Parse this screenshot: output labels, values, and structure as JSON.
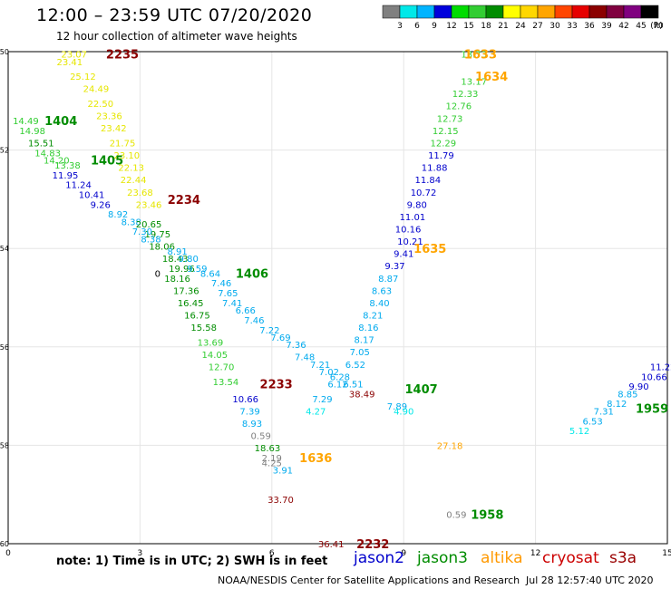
{
  "title": "12:00 – 23:59 UTC 07/20/2020",
  "subtitle": "12 hour collection of altimeter wave heights",
  "colorbar": {
    "ticks": [
      "3",
      "6",
      "9",
      "12",
      "15",
      "18",
      "21",
      "24",
      "27",
      "30",
      "33",
      "36",
      "39",
      "42",
      "45",
      "70",
      "(ft)"
    ],
    "colors": [
      "#808080",
      "#00e8e8",
      "#00b4ff",
      "#0000dc",
      "#00dc00",
      "#32cd32",
      "#008c00",
      "#ffff00",
      "#ffd700",
      "#ffa500",
      "#ff4500",
      "#e60000",
      "#8b0000",
      "#800040",
      "#800080",
      "#000000"
    ]
  },
  "note": "note:  1) Time is in UTC;  2) SWH is in feet",
  "satellites": [
    {
      "name": "jason2",
      "color": "#0000cc"
    },
    {
      "name": "jason3",
      "color": "#008c00"
    },
    {
      "name": "altika",
      "color": "#ff9900"
    },
    {
      "name": "cryosat",
      "color": "#cc0000"
    },
    {
      "name": "s3a",
      "color": "#990000"
    }
  ],
  "credit": "NOAA/NESDIS Center for Satellite Applications and Research",
  "generated": "Jul 28 12:57:40 UTC 2020",
  "chart_data": {
    "type": "scatter",
    "xlim": [
      0,
      15
    ],
    "ylim": [
      -60,
      -50
    ],
    "xticks": [
      "0",
      "3",
      "6",
      "9",
      "12",
      "15"
    ],
    "yticks": [
      "-50",
      "-52",
      "-54",
      "-56",
      "-58",
      "-60"
    ],
    "grid": true,
    "points": [
      {
        "x": 1.5,
        "y": -50.05,
        "v": "23.07",
        "c": "#e6e600"
      },
      {
        "x": 1.4,
        "y": -50.2,
        "v": "23.41",
        "c": "#e6e600"
      },
      {
        "x": 1.7,
        "y": -50.5,
        "v": "25.12",
        "c": "#e6e600"
      },
      {
        "x": 2.0,
        "y": -50.75,
        "v": "24.49",
        "c": "#e6e600"
      },
      {
        "x": 2.1,
        "y": -51.05,
        "v": "22.50",
        "c": "#e6e600"
      },
      {
        "x": 2.3,
        "y": -51.3,
        "v": "23.36",
        "c": "#e6e600"
      },
      {
        "x": 2.4,
        "y": -51.55,
        "v": "23.42",
        "c": "#e6e600"
      },
      {
        "x": 2.6,
        "y": -51.85,
        "v": "21.75",
        "c": "#e6e600"
      },
      {
        "x": 2.7,
        "y": -52.1,
        "v": "23.10",
        "c": "#e6e600"
      },
      {
        "x": 2.8,
        "y": -52.35,
        "v": "22.13",
        "c": "#e6e600"
      },
      {
        "x": 2.85,
        "y": -52.6,
        "v": "22.44",
        "c": "#e6e600"
      },
      {
        "x": 3.0,
        "y": -52.85,
        "v": "23.68",
        "c": "#e6e600"
      },
      {
        "x": 3.2,
        "y": -53.1,
        "v": "23.46",
        "c": "#e6e600"
      },
      {
        "x": 0.4,
        "y": -51.4,
        "v": "14.49",
        "c": "#32cd32"
      },
      {
        "x": 0.55,
        "y": -51.6,
        "v": "14.98",
        "c": "#32cd32"
      },
      {
        "x": 0.75,
        "y": -51.85,
        "v": "15.51",
        "c": "#008c00"
      },
      {
        "x": 0.9,
        "y": -52.05,
        "v": "14.83",
        "c": "#32cd32"
      },
      {
        "x": 1.1,
        "y": -52.2,
        "v": "14.20",
        "c": "#32cd32"
      },
      {
        "x": 1.35,
        "y": -52.3,
        "v": "13.38",
        "c": "#32cd32"
      },
      {
        "x": 1.3,
        "y": -52.5,
        "v": "11.95",
        "c": "#0000cc"
      },
      {
        "x": 1.6,
        "y": -52.7,
        "v": "11.24",
        "c": "#0000cc"
      },
      {
        "x": 1.9,
        "y": -52.9,
        "v": "10.41",
        "c": "#0000cc"
      },
      {
        "x": 2.1,
        "y": -53.1,
        "v": "9.26",
        "c": "#0000cc"
      },
      {
        "x": 2.5,
        "y": -53.3,
        "v": "8.92",
        "c": "#00aaee"
      },
      {
        "x": 2.8,
        "y": -53.45,
        "v": "8.38",
        "c": "#00aaee"
      },
      {
        "x": 3.2,
        "y": -53.5,
        "v": "20.65",
        "c": "#008c00"
      },
      {
        "x": 3.4,
        "y": -53.7,
        "v": "19.75",
        "c": "#008c00"
      },
      {
        "x": 3.05,
        "y": -53.65,
        "v": "7.30",
        "c": "#00aaee"
      },
      {
        "x": 3.25,
        "y": -53.8,
        "v": "8.38",
        "c": "#00aaee"
      },
      {
        "x": 3.5,
        "y": -53.95,
        "v": "18.06",
        "c": "#008c00"
      },
      {
        "x": 3.85,
        "y": -54.05,
        "v": "8.91",
        "c": "#00aaee"
      },
      {
        "x": 3.8,
        "y": -54.2,
        "v": "18.43",
        "c": "#008c00"
      },
      {
        "x": 4.1,
        "y": -54.2,
        "v": "9.80",
        "c": "#00aaee"
      },
      {
        "x": 3.95,
        "y": -54.4,
        "v": "19.96",
        "c": "#008c00"
      },
      {
        "x": 4.3,
        "y": -54.4,
        "v": "9.59",
        "c": "#00aaee"
      },
      {
        "x": 3.85,
        "y": -54.6,
        "v": "18.16",
        "c": "#008c00"
      },
      {
        "x": 4.6,
        "y": -54.5,
        "v": "8.64",
        "c": "#00aaee"
      },
      {
        "x": 4.05,
        "y": -54.85,
        "v": "17.36",
        "c": "#008c00"
      },
      {
        "x": 4.85,
        "y": -54.7,
        "v": "7.46",
        "c": "#00aaee"
      },
      {
        "x": 4.15,
        "y": -55.1,
        "v": "16.45",
        "c": "#008c00"
      },
      {
        "x": 5.0,
        "y": -54.9,
        "v": "7.65",
        "c": "#00aaee"
      },
      {
        "x": 4.3,
        "y": -55.35,
        "v": "16.75",
        "c": "#008c00"
      },
      {
        "x": 5.1,
        "y": -55.1,
        "v": "7.41",
        "c": "#00aaee"
      },
      {
        "x": 4.45,
        "y": -55.6,
        "v": "15.58",
        "c": "#008c00"
      },
      {
        "x": 5.4,
        "y": -55.25,
        "v": "6.66",
        "c": "#00aaee"
      },
      {
        "x": 4.6,
        "y": -55.9,
        "v": "13.69",
        "c": "#32cd32"
      },
      {
        "x": 5.6,
        "y": -55.45,
        "v": "7.46",
        "c": "#00aaee"
      },
      {
        "x": 4.7,
        "y": -56.15,
        "v": "14.05",
        "c": "#32cd32"
      },
      {
        "x": 5.95,
        "y": -55.65,
        "v": "7.22",
        "c": "#00aaee"
      },
      {
        "x": 4.85,
        "y": -56.4,
        "v": "12.70",
        "c": "#32cd32"
      },
      {
        "x": 6.2,
        "y": -55.8,
        "v": "7.69",
        "c": "#00aaee"
      },
      {
        "x": 4.95,
        "y": -56.7,
        "v": "13.54",
        "c": "#32cd32"
      },
      {
        "x": 6.55,
        "y": -55.95,
        "v": "7.36",
        "c": "#00aaee"
      },
      {
        "x": 6.75,
        "y": -56.2,
        "v": "7.48",
        "c": "#00aaee"
      },
      {
        "x": 7.1,
        "y": -56.35,
        "v": "7.21",
        "c": "#00aaee"
      },
      {
        "x": 7.3,
        "y": -56.5,
        "v": "7.02",
        "c": "#00aaee"
      },
      {
        "x": 7.55,
        "y": -56.6,
        "v": "6.28",
        "c": "#00aaee"
      },
      {
        "x": 7.5,
        "y": -56.75,
        "v": "6.12",
        "c": "#00aaee"
      },
      {
        "x": 7.85,
        "y": -56.75,
        "v": "6.51",
        "c": "#00aaee"
      },
      {
        "x": 7.9,
        "y": -56.35,
        "v": "6.52",
        "c": "#00aaee"
      },
      {
        "x": 8.0,
        "y": -56.1,
        "v": "7.05",
        "c": "#00aaee"
      },
      {
        "x": 8.1,
        "y": -55.85,
        "v": "8.17",
        "c": "#00aaee"
      },
      {
        "x": 8.2,
        "y": -55.6,
        "v": "8.16",
        "c": "#00aaee"
      },
      {
        "x": 8.3,
        "y": -55.35,
        "v": "8.21",
        "c": "#00aaee"
      },
      {
        "x": 8.45,
        "y": -55.1,
        "v": "8.40",
        "c": "#00aaee"
      },
      {
        "x": 8.5,
        "y": -54.85,
        "v": "8.63",
        "c": "#00aaee"
      },
      {
        "x": 8.65,
        "y": -54.6,
        "v": "8.87",
        "c": "#00aaee"
      },
      {
        "x": 8.8,
        "y": -54.35,
        "v": "9.37",
        "c": "#0000cc"
      },
      {
        "x": 9.0,
        "y": -54.1,
        "v": "9.41",
        "c": "#0000cc"
      },
      {
        "x": 9.15,
        "y": -53.85,
        "v": "10.21",
        "c": "#0000cc"
      },
      {
        "x": 9.1,
        "y": -53.6,
        "v": "10.16",
        "c": "#0000cc"
      },
      {
        "x": 9.2,
        "y": -53.35,
        "v": "11.01",
        "c": "#0000cc"
      },
      {
        "x": 9.3,
        "y": -53.1,
        "v": "9.80",
        "c": "#0000cc"
      },
      {
        "x": 9.45,
        "y": -52.85,
        "v": "10.72",
        "c": "#0000cc"
      },
      {
        "x": 9.55,
        "y": -52.6,
        "v": "11.84",
        "c": "#0000cc"
      },
      {
        "x": 9.7,
        "y": -52.35,
        "v": "11.88",
        "c": "#0000cc"
      },
      {
        "x": 9.85,
        "y": -52.1,
        "v": "11.79",
        "c": "#0000cc"
      },
      {
        "x": 9.9,
        "y": -51.85,
        "v": "12.29",
        "c": "#32cd32"
      },
      {
        "x": 9.95,
        "y": -51.6,
        "v": "12.15",
        "c": "#32cd32"
      },
      {
        "x": 10.05,
        "y": -51.35,
        "v": "12.73",
        "c": "#32cd32"
      },
      {
        "x": 10.25,
        "y": -51.1,
        "v": "12.76",
        "c": "#32cd32"
      },
      {
        "x": 10.4,
        "y": -50.85,
        "v": "12.33",
        "c": "#32cd32"
      },
      {
        "x": 10.6,
        "y": -50.6,
        "v": "13.17",
        "c": "#32cd32"
      },
      {
        "x": 10.6,
        "y": -50.05,
        "v": "13.73",
        "c": "#32cd32"
      },
      {
        "x": 5.4,
        "y": -57.05,
        "v": "10.66",
        "c": "#0000cc"
      },
      {
        "x": 5.5,
        "y": -57.3,
        "v": "7.39",
        "c": "#00aaee"
      },
      {
        "x": 5.55,
        "y": -57.55,
        "v": "8.93",
        "c": "#00aaee"
      },
      {
        "x": 5.75,
        "y": -57.8,
        "v": "0.59",
        "c": "#808080"
      },
      {
        "x": 5.9,
        "y": -58.05,
        "v": "18.63",
        "c": "#008c00"
      },
      {
        "x": 7.15,
        "y": -57.05,
        "v": "7.29",
        "c": "#00aaee"
      },
      {
        "x": 7.0,
        "y": -57.3,
        "v": "4.27",
        "c": "#00e8e8"
      },
      {
        "x": 8.05,
        "y": -56.95,
        "v": "38.49",
        "c": "#8b0000"
      },
      {
        "x": 8.85,
        "y": -57.2,
        "v": "7.89",
        "c": "#00aaee"
      },
      {
        "x": 9.0,
        "y": -57.3,
        "v": "4.90",
        "c": "#00e8e8"
      },
      {
        "x": 10.05,
        "y": -58.0,
        "v": "27.18",
        "c": "#ffa500"
      },
      {
        "x": 6.2,
        "y": -59.1,
        "v": "33.70",
        "c": "#8b0000"
      },
      {
        "x": 6.25,
        "y": -58.5,
        "v": "3.91",
        "c": "#00aaee"
      },
      {
        "x": 6.0,
        "y": -58.35,
        "v": "4.25",
        "c": "#808080"
      },
      {
        "x": 6.0,
        "y": -58.25,
        "v": "2.19",
        "c": "#808080"
      },
      {
        "x": 10.2,
        "y": -59.4,
        "v": "0.59",
        "c": "#808080"
      },
      {
        "x": 7.35,
        "y": -60.0,
        "v": "36.41",
        "c": "#8b0000"
      },
      {
        "x": 13.0,
        "y": -57.7,
        "v": "5.12",
        "c": "#00e8e8"
      },
      {
        "x": 13.3,
        "y": -57.5,
        "v": "6.53",
        "c": "#00aaee"
      },
      {
        "x": 13.55,
        "y": -57.3,
        "v": "7.31",
        "c": "#00aaee"
      },
      {
        "x": 13.85,
        "y": -57.15,
        "v": "8.12",
        "c": "#00aaee"
      },
      {
        "x": 14.1,
        "y": -56.95,
        "v": "8.85",
        "c": "#00aaee"
      },
      {
        "x": 14.35,
        "y": -56.8,
        "v": "9.90",
        "c": "#0000cc"
      },
      {
        "x": 14.7,
        "y": -56.6,
        "v": "10.66",
        "c": "#0000cc"
      },
      {
        "x": 14.9,
        "y": -56.4,
        "v": "11.22",
        "c": "#0000cc"
      },
      {
        "x": 3.4,
        "y": -54.5,
        "v": "0",
        "c": "#000000"
      }
    ],
    "labels": [
      {
        "x": 2.6,
        "y": -50.05,
        "t": "2235",
        "c": "#8b0000"
      },
      {
        "x": 10.75,
        "y": -50.05,
        "t": "1633",
        "c": "#ffa500"
      },
      {
        "x": 11.0,
        "y": -50.5,
        "t": "1634",
        "c": "#ffa500"
      },
      {
        "x": 1.2,
        "y": -51.4,
        "t": "1404",
        "c": "#008c00"
      },
      {
        "x": 2.25,
        "y": -52.2,
        "t": "1405",
        "c": "#008c00"
      },
      {
        "x": 4.0,
        "y": -53.0,
        "t": "2234",
        "c": "#8b0000"
      },
      {
        "x": 9.6,
        "y": -54.0,
        "t": "1635",
        "c": "#ffa500"
      },
      {
        "x": 5.55,
        "y": -54.5,
        "t": "1406",
        "c": "#008c00"
      },
      {
        "x": 6.1,
        "y": -56.75,
        "t": "2233",
        "c": "#8b0000"
      },
      {
        "x": 9.4,
        "y": -56.85,
        "t": "1407",
        "c": "#008c00"
      },
      {
        "x": 14.65,
        "y": -57.25,
        "t": "1959",
        "c": "#008c00"
      },
      {
        "x": 7.0,
        "y": -58.25,
        "t": "1636",
        "c": "#ffa500"
      },
      {
        "x": 10.9,
        "y": -59.4,
        "t": "1958",
        "c": "#008c00"
      },
      {
        "x": 8.3,
        "y": -60.0,
        "t": "2232",
        "c": "#8b0000"
      }
    ]
  }
}
